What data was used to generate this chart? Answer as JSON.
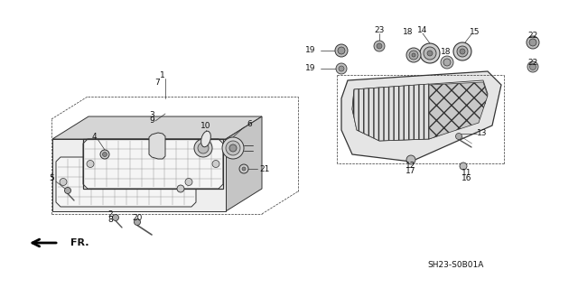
{
  "bg_color": "#ffffff",
  "line_color": "#333333",
  "diagram_code": "SH23-S0B01A",
  "fr_label": "FR."
}
